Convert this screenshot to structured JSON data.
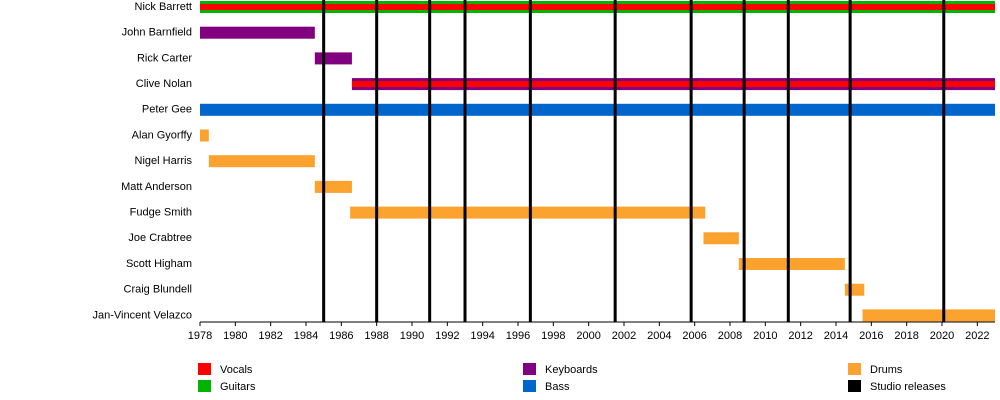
{
  "chart_data": {
    "type": "timeline",
    "categories": [
      "Nick Barrett",
      "John Barnfield",
      "Rick Carter",
      "Clive Nolan",
      "Peter Gee",
      "Alan Gyorffy",
      "Nigel Harris",
      "Matt Anderson",
      "Fudge Smith",
      "Joe Crabtree",
      "Scott Higham",
      "Craig Blundell",
      "Jan-Vincent Velazco"
    ],
    "series": [
      {
        "name": "Vocals",
        "color": "#ff0000",
        "start": [
          1978,
          null,
          null,
          1986.6,
          null,
          null,
          null,
          null,
          null,
          null,
          null,
          null,
          null
        ],
        "end": [
          2023,
          null,
          null,
          2023,
          null,
          null,
          null,
          null,
          null,
          null,
          null,
          null,
          null
        ]
      },
      {
        "name": "Guitars",
        "color": "#00b400",
        "start": [
          1978,
          null,
          null,
          null,
          null,
          null,
          null,
          null,
          null,
          null,
          null,
          null,
          null
        ],
        "end": [
          2023,
          null,
          null,
          null,
          null,
          null,
          null,
          null,
          null,
          null,
          null,
          null,
          null
        ]
      },
      {
        "name": "Keyboards",
        "color": "#800080",
        "start": [
          null,
          1978,
          1984.5,
          1986.6,
          null,
          null,
          null,
          null,
          null,
          null,
          null,
          null,
          null
        ],
        "end": [
          null,
          1984.5,
          1986.6,
          2023,
          null,
          null,
          null,
          null,
          null,
          null,
          null,
          null,
          null
        ]
      },
      {
        "name": "Bass",
        "color": "#0066cc",
        "start": [
          null,
          null,
          null,
          null,
          1978,
          null,
          null,
          null,
          null,
          null,
          null,
          null,
          null
        ],
        "end": [
          null,
          null,
          null,
          null,
          2023,
          null,
          null,
          null,
          null,
          null,
          null,
          null,
          null
        ]
      },
      {
        "name": "Drums",
        "color": "#fba22f",
        "start": [
          null,
          null,
          null,
          null,
          null,
          1978,
          1978.5,
          1984.5,
          1986.5,
          2006.5,
          2008.5,
          2014.5,
          2015.5
        ],
        "end": [
          null,
          null,
          null,
          null,
          null,
          1978.5,
          1984.5,
          1986.6,
          2006.6,
          2008.5,
          2014.5,
          2015.6,
          2023
        ]
      }
    ],
    "events": {
      "name": "Studio releases",
      "color": "#000000",
      "x": [
        1985,
        1988,
        1991,
        1993,
        1996.7,
        2001.5,
        2005.8,
        2008.8,
        2011.3,
        2014.8,
        2020.1
      ]
    },
    "xlim": [
      1978,
      2023
    ],
    "xticks": [
      1978,
      1980,
      1982,
      1984,
      1986,
      1988,
      1990,
      1992,
      1994,
      1996,
      1998,
      2000,
      2002,
      2004,
      2006,
      2008,
      2010,
      2012,
      2014,
      2016,
      2018,
      2020,
      2022
    ]
  }
}
